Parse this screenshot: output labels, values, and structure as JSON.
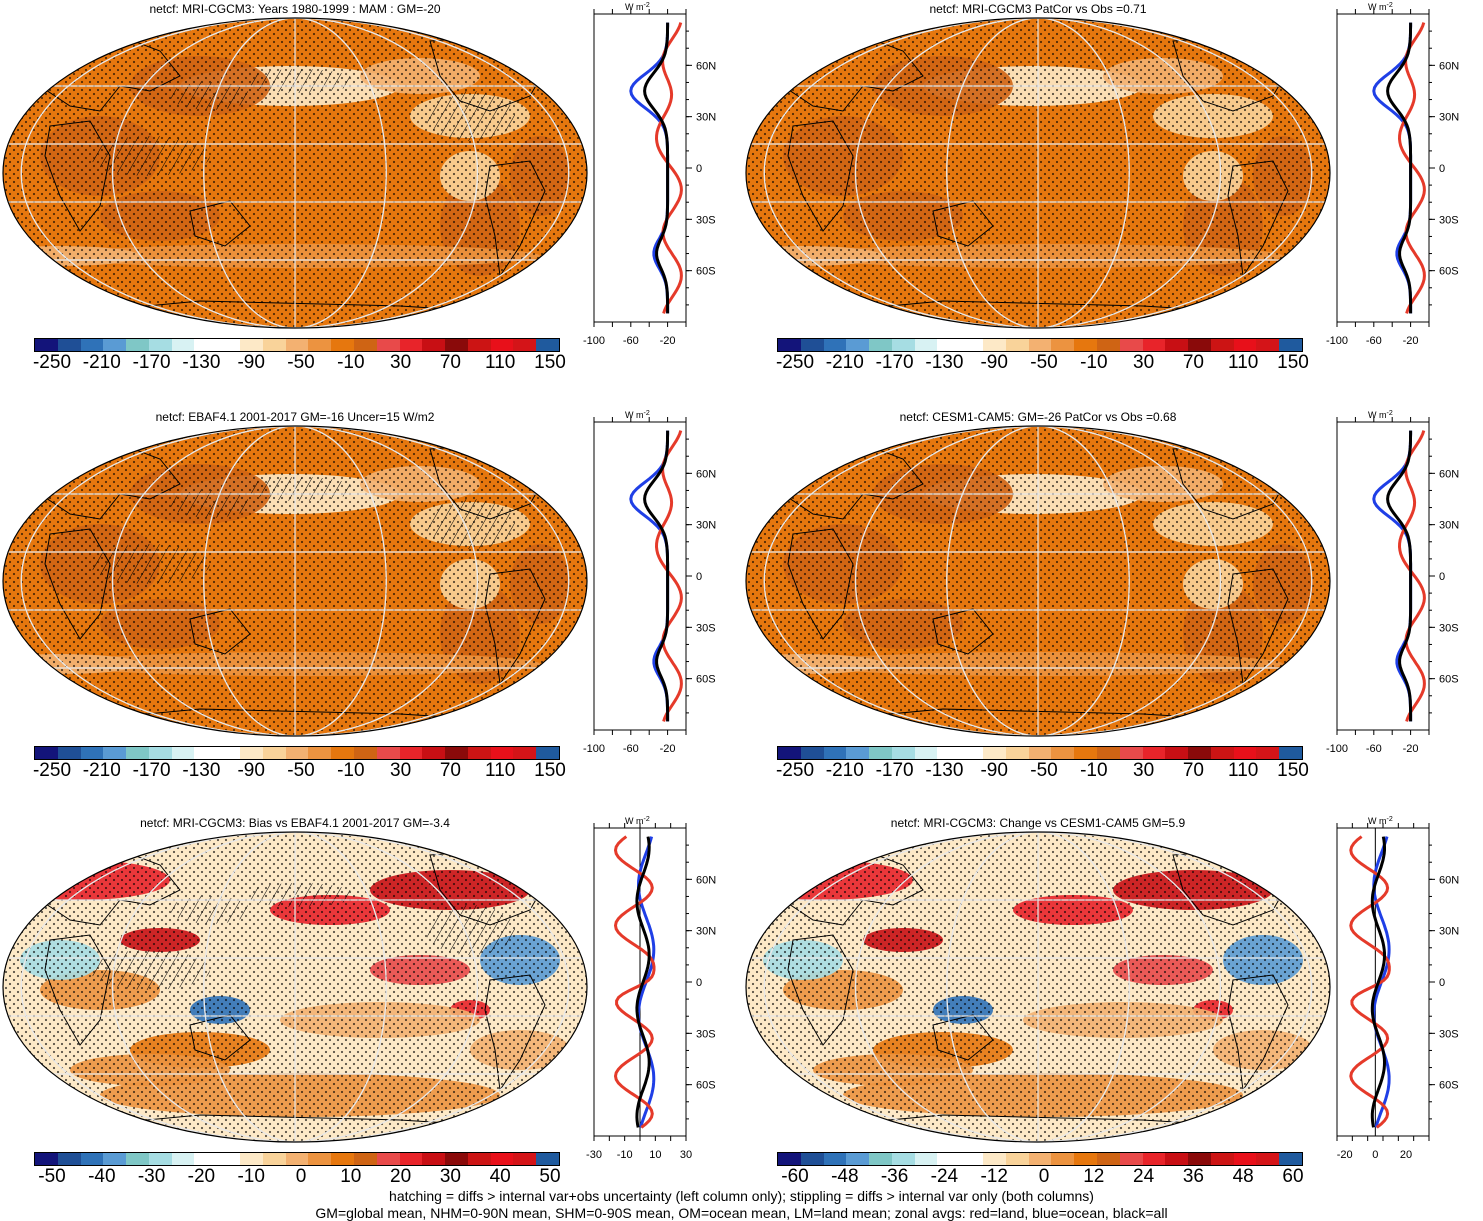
{
  "panels": [
    {
      "id": "p1",
      "title": "netcf: MRI-CGCM3: Years 1980-1999 : MAM : GM=-20",
      "palette": "abs",
      "colorbar_labels": [
        "-250",
        "-210",
        "-170",
        "-130",
        "-90",
        "-50",
        "-10",
        "30",
        "70",
        "110",
        "150"
      ],
      "zonal_ticks": [
        "-100",
        "-60",
        "-20"
      ],
      "zonal_x": [
        -100,
        0
      ],
      "hatch": true
    },
    {
      "id": "p2",
      "title": "netcf: MRI-CGCM3 PatCor vs Obs =0.71",
      "palette": "abs",
      "colorbar_labels": [
        "-250",
        "-210",
        "-170",
        "-130",
        "-90",
        "-50",
        "-10",
        "30",
        "70",
        "110",
        "150"
      ],
      "zonal_ticks": [
        "-100",
        "-60",
        "-20"
      ],
      "zonal_x": [
        -100,
        0
      ],
      "hatch": false
    },
    {
      "id": "p3",
      "title": "netcf: EBAF4.1 2001-2017 GM=-16 Uncer=15 W/m2",
      "palette": "abs",
      "colorbar_labels": [
        "-250",
        "-210",
        "-170",
        "-130",
        "-90",
        "-50",
        "-10",
        "30",
        "70",
        "110",
        "150"
      ],
      "zonal_ticks": [
        "-100",
        "-60",
        "-20"
      ],
      "zonal_x": [
        -100,
        0
      ],
      "hatch": true
    },
    {
      "id": "p4",
      "title": "netcf: CESM1-CAM5: GM=-26 PatCor vs Obs =0.68",
      "palette": "abs",
      "colorbar_labels": [
        "-250",
        "-210",
        "-170",
        "-130",
        "-90",
        "-50",
        "-10",
        "30",
        "70",
        "110",
        "150"
      ],
      "zonal_ticks": [
        "-100",
        "-60",
        "-20"
      ],
      "zonal_x": [
        -100,
        0
      ],
      "hatch": false
    },
    {
      "id": "p5",
      "title": "netcf: MRI-CGCM3: Bias vs EBAF4.1 2001-2017 GM=-3.4",
      "palette": "diff",
      "colorbar_labels": [
        "-50",
        "-40",
        "-30",
        "-20",
        "-10",
        "0",
        "10",
        "20",
        "30",
        "40",
        "50"
      ],
      "zonal_ticks": [
        "-30",
        "-10",
        "10",
        "30"
      ],
      "zonal_x": [
        -30,
        30
      ],
      "hatch": true
    },
    {
      "id": "p6",
      "title": "netcf: MRI-CGCM3: Change vs CESM1-CAM5 GM=5.9",
      "palette": "diff",
      "colorbar_labels": [
        "-60",
        "-48",
        "-36",
        "-24",
        "-12",
        "0",
        "12",
        "24",
        "36",
        "48",
        "60"
      ],
      "zonal_ticks": [
        "-20",
        "0",
        "20"
      ],
      "zonal_x": [
        -25,
        35
      ],
      "hatch": false
    }
  ],
  "lat_labels": [
    "60N",
    "30N",
    "0",
    "30S",
    "60S"
  ],
  "unit_label": "W m",
  "unit_exp": "-2",
  "palettes": {
    "abs": [
      "#13147a",
      "#1f4f96",
      "#2f72b8",
      "#5a9bd4",
      "#7fc7c6",
      "#a6dde3",
      "#d8f2f3",
      "#ffffff",
      "#ffffff",
      "#fde9c7",
      "#f9d39a",
      "#f3b171",
      "#ec9340",
      "#e6770e",
      "#cf6414",
      "#e84a4a",
      "#e8242a",
      "#c80f14",
      "#8a0a0a",
      "#cc1414",
      "#e8101a",
      "#d41418",
      "#1f5a9e"
    ],
    "diff": [
      "#13147a",
      "#1f4f96",
      "#2f72b8",
      "#5a9bd4",
      "#7fc7c6",
      "#a6dde3",
      "#d8f2f3",
      "#ffffff",
      "#ffffff",
      "#fde9c7",
      "#f9d39a",
      "#f3b171",
      "#ec9340",
      "#e6770e",
      "#cf6414",
      "#e84a4a",
      "#e8242a",
      "#c80f14",
      "#8a0a0a",
      "#cc1414",
      "#e8101a",
      "#d41418",
      "#1f5a9e"
    ]
  },
  "colors": {
    "land_line": "#e53a2a",
    "ocean_line": "#1f3fe6",
    "all_line": "#000000",
    "map_base_abs": "#e6770e",
    "map_base_diff": "#fde9c7"
  },
  "footnote": {
    "line1": "hatching = diffs > internal var+obs uncertainty (left column only); stippling = diffs > internal var only (both columns)",
    "line2": "GM=global mean, NHM=0-90N mean, SHM=0-90S mean, OM=ocean mean, LM=land mean; zonal avgs: red=land, blue=ocean, black=all"
  }
}
